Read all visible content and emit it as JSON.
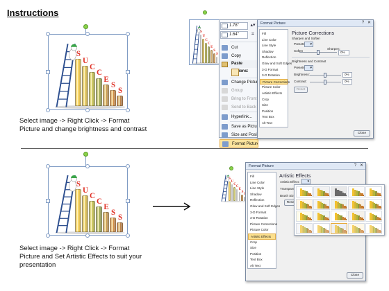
{
  "heading": "Instructions",
  "captions": {
    "top_lines": [
      "Select image -> Right Click -> Format",
      "Picture and change brightness and contrast"
    ],
    "bottom_lines": [
      "Select image -> Right Click -> Format",
      "Picture and Set Artistic Effects to suit your",
      "presentation"
    ]
  },
  "graphic": {
    "letters": [
      "S",
      "U",
      "C",
      "C",
      "E",
      "S",
      "S"
    ],
    "bar_colors": [
      "#f2c230",
      "#d8b53a",
      "#b8b53a",
      "#8e9a3c",
      "#c08a3a",
      "#c97a2d",
      "#b06a2a"
    ],
    "bar_levels": [
      1.0,
      0.86,
      0.72,
      0.6,
      0.46,
      0.34,
      0.22
    ],
    "ladder_color": "#2d4f8f",
    "figure_color": "#ffffff",
    "cap_color": "#3ca64a"
  },
  "context_menu": {
    "height_value": "1.78\"",
    "width_value": "1.64\"",
    "items": [
      {
        "label": "Cut",
        "icon": "scissors-icon",
        "disabled": false
      },
      {
        "label": "Copy",
        "icon": "copy-icon",
        "disabled": false
      },
      {
        "label": "Paste Options:",
        "icon": "paste-icon",
        "disabled": false,
        "section": true
      },
      {
        "label": "Change Picture...",
        "icon": "change-picture-icon",
        "disabled": false
      },
      {
        "label": "Group",
        "icon": "group-icon",
        "disabled": true
      },
      {
        "label": "Bring to Front",
        "icon": "bring-front-icon",
        "disabled": true
      },
      {
        "label": "Send to Back",
        "icon": "send-back-icon",
        "disabled": true
      },
      {
        "label": "Hyperlink...",
        "icon": "hyperlink-icon",
        "disabled": false
      },
      {
        "label": "Save as Picture...",
        "icon": "save-picture-icon",
        "disabled": false
      },
      {
        "label": "Size and Position...",
        "icon": "size-position-icon",
        "disabled": false
      },
      {
        "label": "Format Picture...",
        "icon": "format-picture-icon",
        "disabled": false,
        "highlighted": true
      }
    ]
  },
  "dialog_corrections": {
    "title": "Format Picture",
    "nav": [
      "Fill",
      "Line Color",
      "Line Style",
      "Shadow",
      "Reflection",
      "Glow and Soft Edges",
      "3-D Format",
      "3-D Rotation",
      "Picture Corrections",
      "Picture Color",
      "Artistic Effects",
      "Crop",
      "Size",
      "Position",
      "Text Box",
      "Alt Text"
    ],
    "active": "Picture Corrections",
    "panel_title": "Picture Corrections",
    "section1": "Sharpen and Soften",
    "presets_label": "Presets:",
    "soften_label": "Soften",
    "sharpen_label": "Sharpen:",
    "sharpen_value": "0%",
    "section2": "Brightness and Contrast",
    "presets2_label": "Presets:",
    "brightness_label": "Brightness:",
    "brightness_value": "0%",
    "contrast_label": "Contrast:",
    "contrast_value": "0%",
    "reset_label": "Reset",
    "close_label": "Close"
  },
  "dialog_effects": {
    "title": "Format Picture",
    "nav": [
      "Fill",
      "Line Color",
      "Line Style",
      "Shadow",
      "Reflection",
      "Glow and Soft Edges",
      "3-D Format",
      "3-D Rotation",
      "Picture Corrections",
      "Picture Color",
      "Artistic Effects",
      "Crop",
      "Size",
      "Position",
      "Text Box",
      "Alt Text"
    ],
    "active": "Artistic Effects",
    "panel_title": "Artistic Effects",
    "effect_label": "Artistic Effect:",
    "transparency_label": "Transparency:",
    "brush_label": "Brush Size:",
    "reset_label": "Reset",
    "close_label": "Close"
  },
  "gallery": {
    "tints": [
      "#ffffff",
      "#f2f2f2",
      "#e9e9e9",
      "#fafafa",
      "#ffffff",
      "#fff6e6",
      "#f4f4f4",
      "#eef2ea",
      "#f7f0e6",
      "#ffffff",
      "#fdfbe9",
      "#f1f5f1",
      "#ffffff",
      "#f5f1ea",
      "#ffffff",
      "#f6f6f6",
      "#ffffff",
      "#eef0f4",
      "#fff8ea",
      "#ffffff"
    ],
    "highlighted_index": 17
  }
}
